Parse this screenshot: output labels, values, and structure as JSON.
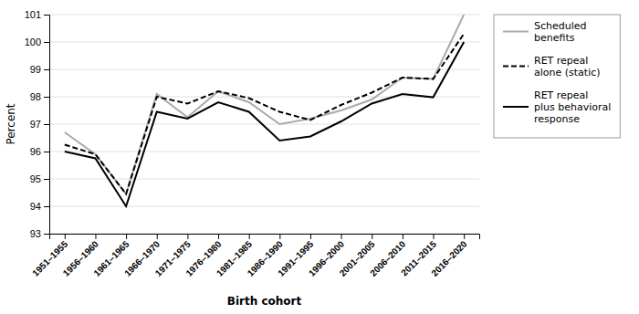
{
  "chart_data": {
    "type": "line",
    "categories": [
      "1951–1955",
      "1956–1960",
      "1961–1965",
      "1966–1970",
      "1971–1975",
      "1976–1980",
      "1981–1985",
      "1986–1990",
      "1991–1995",
      "1996–2000",
      "2001–2005",
      "2006–2010",
      "2011–2015",
      "2016–2020"
    ],
    "series": [
      {
        "name": "Scheduled\nbenefits",
        "color": "#aaaaaa",
        "line_style": "solid",
        "values": [
          96.7,
          95.9,
          94.45,
          98.1,
          97.25,
          98.2,
          97.8,
          97.0,
          97.2,
          97.5,
          97.9,
          98.7,
          98.65,
          101.0
        ]
      },
      {
        "name": "RET repeal\nalone (static)",
        "color": "#000000",
        "line_style": "dashed",
        "values": [
          96.25,
          95.9,
          94.45,
          98.0,
          97.75,
          98.2,
          97.95,
          97.45,
          97.15,
          97.7,
          98.15,
          98.7,
          98.65,
          100.3
        ]
      },
      {
        "name": "RET repeal\nplus behavioral\nresponse",
        "color": "#000000",
        "line_style": "solid",
        "values": [
          96.0,
          95.75,
          94.0,
          97.45,
          97.2,
          97.8,
          97.45,
          96.4,
          96.55,
          97.1,
          97.75,
          98.1,
          97.98,
          100.0
        ]
      }
    ],
    "ylabel": "Percent",
    "xlabel": "Birth cohort",
    "ylim": [
      93,
      101
    ],
    "yticks": [
      93,
      94,
      95,
      96,
      97,
      98,
      99,
      100,
      101
    ],
    "grid": true,
    "legend": "right"
  }
}
